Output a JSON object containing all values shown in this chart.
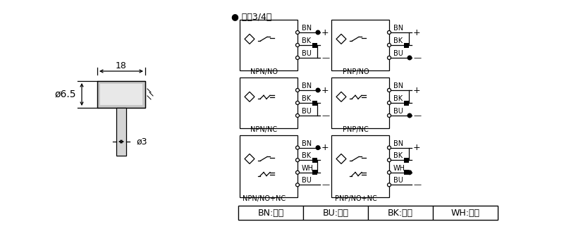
{
  "bg_color": "#ffffff",
  "title_bullet": "● 直流3/4线",
  "dimension_18": "18",
  "dimension_phi65": "ø6.5",
  "dimension_phi3": "ø3",
  "legend_items": [
    "BN:棕色",
    "BU:兰色",
    "BK:黑色",
    "WH:白色"
  ],
  "font_size_main": 9,
  "font_size_label": 7,
  "font_size_box_label": 7
}
